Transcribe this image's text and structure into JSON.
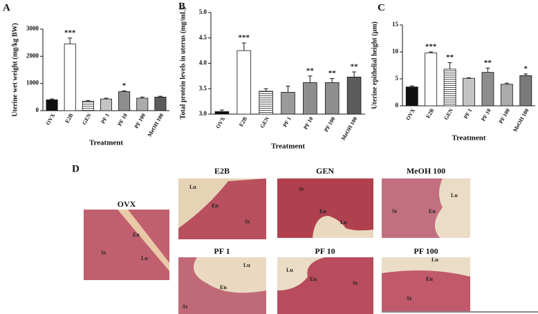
{
  "chart_data": [
    {
      "type": "bar",
      "panel": "A",
      "y_label": "Uterine wet weight (mg/kg BW)",
      "x_label": "Treatment",
      "categories": [
        "OVX",
        "E2B",
        "GEN",
        "PF 1",
        "PF 10",
        "PF 100",
        "MeOH 100"
      ],
      "values": [
        400,
        2450,
        350,
        430,
        700,
        460,
        500
      ],
      "errors": [
        30,
        220,
        20,
        30,
        30,
        40,
        30
      ],
      "significance": [
        null,
        "***",
        null,
        null,
        "*",
        null,
        null
      ],
      "colors": [
        "#111111",
        "#ffffff",
        "#ffffff",
        "#c4c4c4",
        "#8e8e8e",
        "#ababab",
        "#5c5c5c"
      ],
      "hatch": [
        false,
        false,
        true,
        false,
        false,
        false,
        false
      ],
      "ylim": [
        0,
        3000
      ],
      "yticks": [
        0,
        1000,
        2000,
        3000
      ]
    },
    {
      "type": "bar",
      "panel": "B",
      "y_label": "Total protein levels in uterus (mg/mL)",
      "x_label": "Treatment",
      "categories": [
        "OVX",
        "E2B",
        "GEN",
        "PF 1",
        "PF 10",
        "PF 100",
        "MeOH 100"
      ],
      "values": [
        3.05,
        4.25,
        3.45,
        3.43,
        3.62,
        3.62,
        3.73
      ],
      "errors": [
        0.03,
        0.15,
        0.05,
        0.12,
        0.13,
        0.08,
        0.1
      ],
      "significance": [
        null,
        "***",
        null,
        null,
        "**",
        "**",
        "**"
      ],
      "colors": [
        "#111111",
        "#ffffff",
        "#ffffff",
        "#9a9a9a",
        "#8e8e8e",
        "#8e8e8e",
        "#5c5c5c"
      ],
      "hatch": [
        false,
        false,
        true,
        false,
        false,
        false,
        false
      ],
      "ylim": [
        3.0,
        5.0
      ],
      "yticks": [
        {
          "value": 3.0,
          "label": "3.0"
        },
        {
          "value": 3.5,
          "label": "3.5"
        },
        {
          "value": 4.0,
          "label": "4.0"
        },
        {
          "value": 4.5,
          "label": "4.5"
        },
        {
          "value": 5.0,
          "label": "5.0"
        }
      ]
    },
    {
      "type": "bar",
      "panel": "C",
      "y_label": "Uterine epithelial height (µm)",
      "x_label": "Treatment",
      "categories": [
        "OVX",
        "E2B",
        "GEN",
        "PF 1",
        "PF 10",
        "PF 100",
        "MeOH 100"
      ],
      "values": [
        3.5,
        9.8,
        6.8,
        5.1,
        6.2,
        4.0,
        5.6
      ],
      "errors": [
        0.2,
        0.2,
        1.2,
        0.1,
        0.8,
        0.2,
        0.3
      ],
      "significance": [
        null,
        "***",
        "**",
        null,
        "**",
        null,
        "*"
      ],
      "colors": [
        "#111111",
        "#ffffff",
        "#ffffff",
        "#c4c4c4",
        "#8e8e8e",
        "#ababab",
        "#7a7a7a"
      ],
      "hatch": [
        false,
        false,
        true,
        false,
        false,
        false,
        false
      ],
      "ylim": [
        0,
        15
      ],
      "yticks": [
        0,
        5,
        10,
        15
      ]
    }
  ],
  "histology": {
    "panel": "D",
    "images": [
      {
        "title": "OVX",
        "tags": [
          "En",
          "St",
          "Lu"
        ]
      },
      {
        "title": "E2B",
        "tags": [
          "Lu",
          "En",
          "St"
        ]
      },
      {
        "title": "GEN",
        "tags": [
          "St",
          "En",
          "Lu"
        ]
      },
      {
        "title": "MeOH 100",
        "tags": [
          "Lu",
          "St",
          "En"
        ]
      },
      {
        "title": "PF 1",
        "tags": [
          "Lu",
          "En",
          "St"
        ]
      },
      {
        "title": "PF 10",
        "tags": [
          "Lu",
          "En",
          "St"
        ]
      },
      {
        "title": "PF 100",
        "tags": [
          "Lu",
          "En",
          "St"
        ]
      }
    ]
  }
}
